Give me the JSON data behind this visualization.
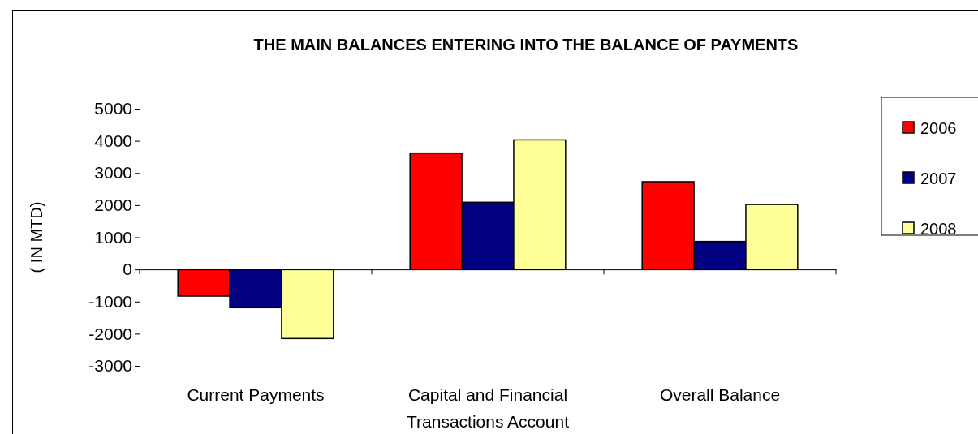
{
  "chart_data": {
    "type": "bar",
    "title": "THE MAIN BALANCES ENTERING INTO THE BALANCE OF PAYMENTS",
    "ylabel": "( IN MTD)",
    "categories": [
      "Current Payments",
      "Capital and Financial Transactions Account",
      "Overall Balance"
    ],
    "series": [
      {
        "name": "2006",
        "color": "#ff0000",
        "values": [
          -830,
          3620,
          2730
        ]
      },
      {
        "name": "2007",
        "color": "#000080",
        "values": [
          -1190,
          2090,
          870
        ]
      },
      {
        "name": "2008",
        "color": "#ffff99",
        "values": [
          -2150,
          4030,
          2020
        ]
      }
    ],
    "ylim": [
      -3000,
      5000
    ],
    "yticks": [
      -3000,
      -2000,
      -1000,
      0,
      1000,
      2000,
      3000,
      4000,
      5000
    ],
    "legend": "right"
  }
}
